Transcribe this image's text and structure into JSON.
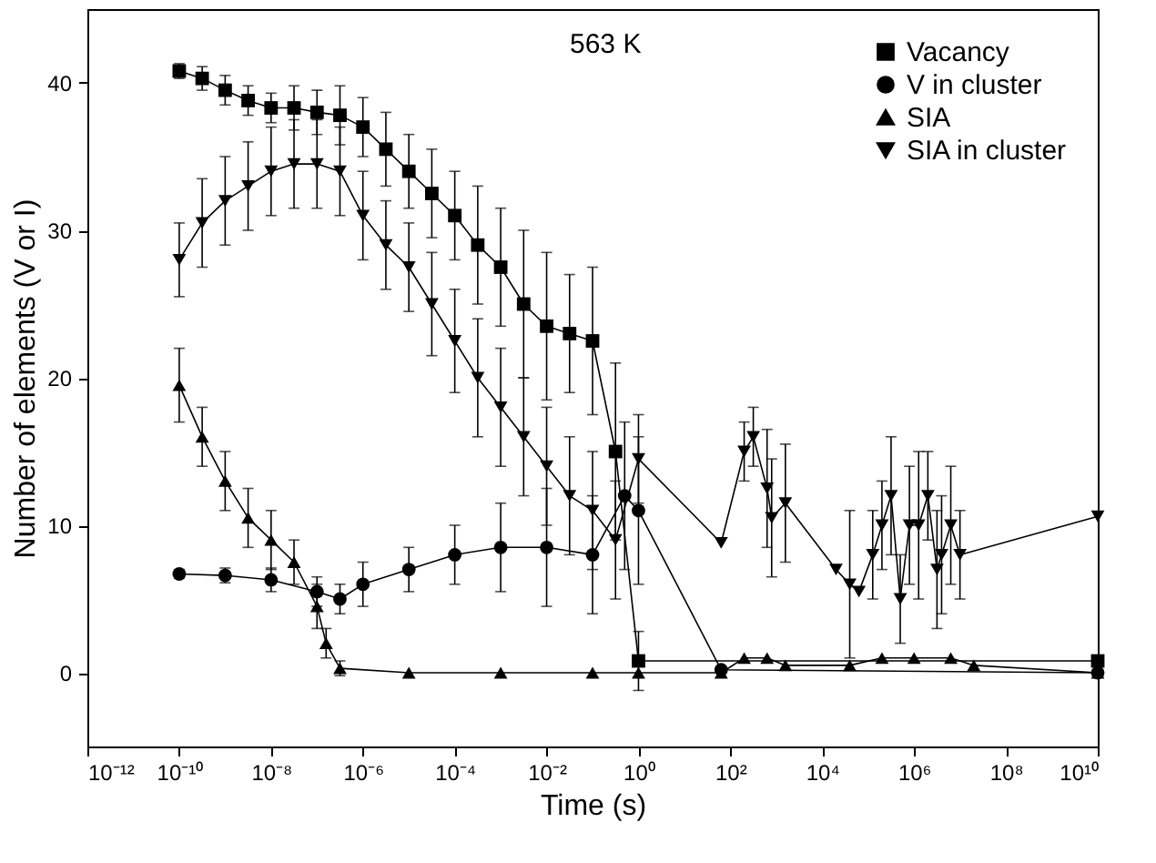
{
  "chart_data": {
    "type": "line",
    "xlabel": "Time (s)",
    "ylabel": "Number of elements (V or I)",
    "annotations": [
      "563 K"
    ],
    "log": "x",
    "xlim": [
      1e-12,
      10000000000.0
    ],
    "ylim": [
      -5,
      45
    ],
    "xticks": [
      {
        "value": 1e-12,
        "label": "10⁻¹²"
      },
      {
        "value": 1e-10,
        "label": "10⁻¹⁰"
      },
      {
        "value": 1e-08,
        "label": "10⁻⁸"
      },
      {
        "value": 1e-06,
        "label": "10⁻⁶"
      },
      {
        "value": 0.0001,
        "label": "10⁻⁴"
      },
      {
        "value": 0.01,
        "label": "10⁻²"
      },
      {
        "value": 1,
        "label": "10⁰"
      },
      {
        "value": 100,
        "label": "10²"
      },
      {
        "value": 10000,
        "label": "10⁴"
      },
      {
        "value": 1000000,
        "label": "10⁶"
      },
      {
        "value": 100000000,
        "label": "10⁸"
      },
      {
        "value": 10000000000,
        "label": "10¹⁰"
      }
    ],
    "yticks": [
      0,
      10,
      20,
      30,
      40
    ],
    "grid": false,
    "legend": "top right",
    "line_style": "solid",
    "series": [
      {
        "name": "Vacancy",
        "color": "#000000",
        "marker": "square",
        "x": [
          1e-10,
          3.16e-10,
          1e-09,
          3.16e-09,
          1e-08,
          3.16e-08,
          1e-07,
          3.16e-07,
          1e-06,
          3.16e-06,
          1e-05,
          3.16e-05,
          0.0001,
          0.000316,
          0.001,
          0.00316,
          0.01,
          0.0316,
          0.1,
          0.316,
          1,
          10000000000.0
        ],
        "values": [
          40.8,
          40.3,
          39.5,
          38.8,
          38.3,
          38.3,
          38,
          37.8,
          37,
          35.5,
          34,
          32.5,
          31,
          29,
          27.5,
          25,
          23.5,
          23,
          22.5,
          15,
          0.8,
          0.8
        ],
        "errors": [
          0.5,
          0.8,
          1,
          1,
          1,
          1.5,
          1.5,
          2,
          2,
          2.5,
          2.5,
          3,
          3,
          4,
          4,
          5,
          5,
          4,
          5,
          6,
          2,
          null
        ]
      },
      {
        "name": "V in cluster",
        "color": "#000000",
        "marker": "circle",
        "x": [
          1e-10,
          1e-09,
          1e-08,
          1e-07,
          3.16e-07,
          1e-06,
          1e-05,
          0.0001,
          0.001,
          0.01,
          0.1,
          0.5,
          1,
          63.1,
          10000000000.0
        ],
        "values": [
          6.7,
          6.6,
          6.3,
          5.5,
          5,
          6,
          7,
          8,
          8.5,
          8.5,
          8,
          12,
          11,
          0.2,
          0
        ],
        "errors": [
          0.3,
          0.5,
          0.8,
          1,
          1,
          1.5,
          1.5,
          2,
          3,
          4,
          4,
          5,
          5,
          null,
          null
        ]
      },
      {
        "name": "SIA",
        "color": "#000000",
        "marker": "triangle",
        "x": [
          1e-10,
          3.16e-10,
          1e-09,
          3.16e-09,
          1e-08,
          3.16e-08,
          1e-07,
          1.58e-07,
          3.16e-07,
          1e-05,
          0.001,
          0.1,
          1,
          63.1,
          200,
          631,
          1580,
          39800,
          200000,
          1000000,
          6310000,
          20000000,
          10000000000.0
        ],
        "values": [
          19.5,
          16,
          13,
          10.5,
          9,
          7.5,
          4.5,
          2,
          0.3,
          0,
          0,
          0,
          0,
          0,
          1,
          1,
          0.5,
          0.5,
          1,
          1,
          1,
          0.5,
          0
        ],
        "errors": [
          2.5,
          2,
          2,
          2,
          2,
          1.5,
          1.5,
          1,
          0.5,
          null,
          null,
          null,
          null,
          null,
          null,
          null,
          null,
          null,
          null,
          null,
          null,
          null,
          null
        ]
      },
      {
        "name": "SIA in cluster",
        "color": "#000000",
        "marker": "triangle-down",
        "x": [
          1e-10,
          3.16e-10,
          1e-09,
          3.16e-09,
          1e-08,
          3.16e-08,
          1e-07,
          3.16e-07,
          1e-06,
          3.16e-06,
          1e-05,
          3.16e-05,
          0.0001,
          0.000316,
          0.001,
          0.00316,
          0.01,
          0.0316,
          0.1,
          0.316,
          1,
          63.1,
          200,
          316,
          631,
          794,
          1580,
          20000,
          39800,
          63100,
          126000,
          200000,
          316000,
          501000,
          794000,
          1260000,
          2000000,
          3160000,
          3980000,
          6310000,
          10000000,
          10000000000.0
        ],
        "values": [
          28,
          30.5,
          32,
          33,
          34,
          34.5,
          34.5,
          34,
          31,
          29,
          27.5,
          25,
          22.5,
          20,
          18,
          16,
          14,
          12,
          11,
          9,
          14.5,
          8.8,
          15,
          16,
          12.5,
          10.5,
          11.5,
          7,
          6,
          5.5,
          8,
          10,
          12,
          5,
          10,
          10,
          12,
          7,
          8,
          10,
          8,
          10.6
        ],
        "errors": [
          2.5,
          3,
          3,
          3,
          3,
          3,
          3,
          3,
          3,
          3,
          3,
          3.5,
          3.5,
          4,
          4,
          4,
          4,
          4,
          4,
          4,
          3,
          null,
          2,
          2,
          4,
          4,
          4,
          null,
          5,
          null,
          3,
          3,
          4,
          3,
          4,
          5,
          3,
          4,
          4,
          4,
          3,
          null
        ]
      }
    ]
  }
}
